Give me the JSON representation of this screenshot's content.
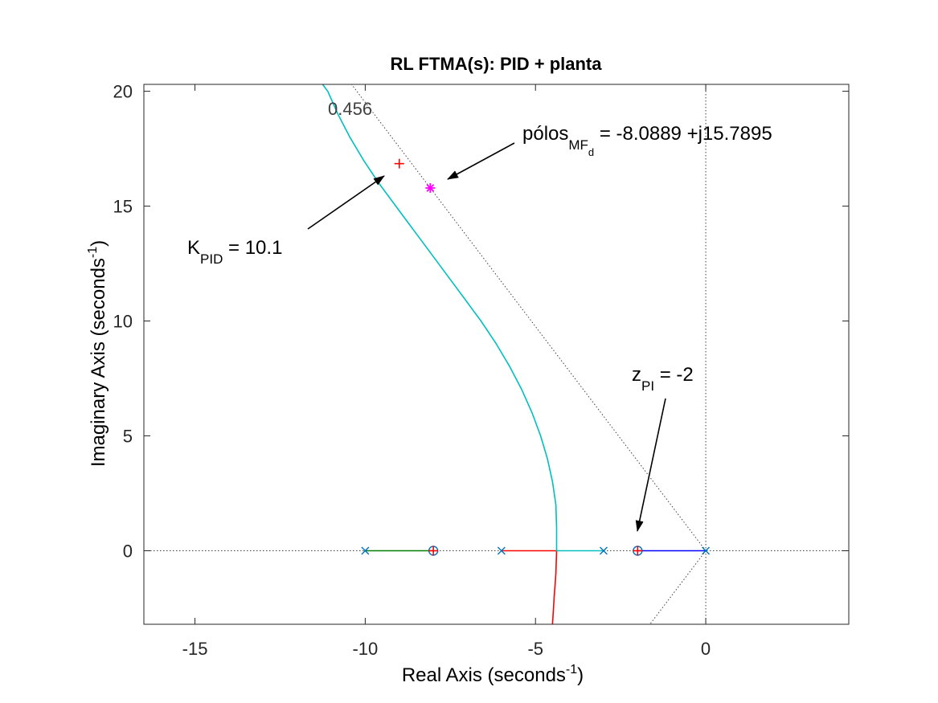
{
  "chart_data": {
    "type": "root-locus",
    "title": "RL FTMA(s): PID + planta",
    "xlabel": "Real Axis (seconds",
    "xlabel_sup": "-1",
    "xlabel_end": ")",
    "ylabel": "Imaginary Axis (seconds",
    "ylabel_sup": "-1",
    "ylabel_end": ")",
    "xlim": [
      -16.5,
      4.2
    ],
    "ylim": [
      -3.2,
      20.3
    ],
    "xticks": [
      -15,
      -10,
      -5,
      0
    ],
    "yticks": [
      0,
      5,
      10,
      15,
      20
    ],
    "grid": false,
    "open_loop_poles": [
      [
        -10,
        0
      ],
      [
        -6,
        0
      ],
      [
        -3,
        0
      ],
      [
        0,
        0
      ]
    ],
    "open_loop_zeros": [
      [
        -8,
        0
      ],
      [
        -2,
        0
      ]
    ],
    "damping_line": {
      "zeta": 0.456,
      "label": "0.456"
    },
    "series": [
      {
        "color": "#007f00",
        "points": [
          [
            -10,
            0
          ],
          [
            -8,
            0
          ]
        ]
      },
      {
        "color": "#ff0000",
        "points": [
          [
            -6,
            0
          ],
          [
            -4.38,
            0
          ],
          [
            -4.4,
            -1.0
          ],
          [
            -4.45,
            -2.0
          ],
          [
            -4.5,
            -3.2
          ]
        ]
      },
      {
        "color": "#00bfbf",
        "points": [
          [
            -3,
            0
          ],
          [
            -4.38,
            0
          ],
          [
            -4.38,
            1.0
          ],
          [
            -4.4,
            2.0
          ],
          [
            -4.5,
            3.0
          ],
          [
            -4.65,
            4.0
          ],
          [
            -4.85,
            5.0
          ],
          [
            -5.1,
            6.0
          ],
          [
            -5.4,
            7.0
          ],
          [
            -5.75,
            8.0
          ],
          [
            -6.15,
            9.0
          ],
          [
            -6.6,
            10.0
          ],
          [
            -7.1,
            11.0
          ],
          [
            -7.6,
            12.0
          ],
          [
            -8.1,
            13.0
          ],
          [
            -8.6,
            14.0
          ],
          [
            -9.1,
            15.0
          ],
          [
            -9.6,
            16.0
          ],
          [
            -10.05,
            17.0
          ],
          [
            -10.45,
            18.0
          ],
          [
            -10.8,
            19.0
          ],
          [
            -11.1,
            20.0
          ],
          [
            -11.25,
            20.3
          ]
        ]
      },
      {
        "color": "#0000ff",
        "points": [
          [
            0,
            0
          ],
          [
            -2,
            0
          ]
        ]
      }
    ],
    "gain_markers": [
      [
        -9.0,
        16.85
      ],
      [
        -8.0,
        0
      ],
      [
        -2.0,
        0
      ]
    ],
    "desired_pole": [
      -8.0889,
      15.7895
    ],
    "annotations": {
      "poles_text": "pólos",
      "poles_sub": "MF",
      "poles_subsub": "d",
      "poles_value": " = -8.0889 +j15.7895",
      "k_text": "K",
      "k_sub": "PID",
      "k_value": " = 10.1",
      "z_text": "z",
      "z_sub": "PI",
      "z_value": " = -2"
    }
  }
}
